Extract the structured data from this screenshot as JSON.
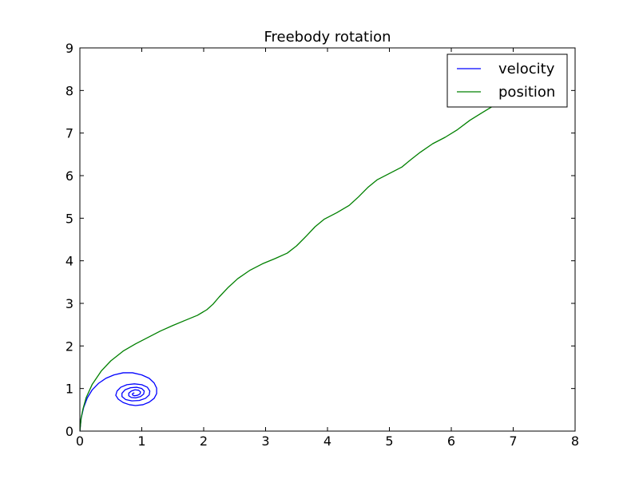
{
  "chart_data": {
    "type": "line",
    "title": "Freebody rotation",
    "xlabel": "",
    "ylabel": "",
    "xlim": [
      0,
      8
    ],
    "ylim": [
      0,
      9
    ],
    "xticks": [
      "0",
      "1",
      "2",
      "3",
      "4",
      "5",
      "6",
      "7",
      "8"
    ],
    "yticks": [
      "0",
      "1",
      "2",
      "3",
      "4",
      "5",
      "6",
      "7",
      "8",
      "9"
    ],
    "grid": false,
    "legend": "top-right",
    "series": [
      {
        "name": "velocity",
        "color": "#0000ff",
        "shape": "inward spiral",
        "x": [
          0.0,
          0.02,
          0.06,
          0.12,
          0.2,
          0.3,
          0.42,
          0.55,
          0.7,
          0.85,
          1.0,
          1.12,
          1.2,
          1.24,
          1.24,
          1.2,
          1.12,
          1.02,
          0.9,
          0.8,
          0.7,
          0.62,
          0.58,
          0.6,
          0.66,
          0.76,
          0.88,
          1.0,
          1.09,
          1.13,
          1.12,
          1.06,
          0.96,
          0.84,
          0.74,
          0.68,
          0.68,
          0.73,
          0.82,
          0.92,
          1.0,
          1.04,
          1.03,
          0.98,
          0.9,
          0.83,
          0.79,
          0.79,
          0.83,
          0.89,
          0.95,
          0.98,
          0.97,
          0.93,
          0.88,
          0.85,
          0.85,
          0.88
        ],
        "y": [
          0.0,
          0.3,
          0.55,
          0.78,
          0.97,
          1.12,
          1.24,
          1.32,
          1.37,
          1.37,
          1.32,
          1.24,
          1.13,
          1.01,
          0.88,
          0.77,
          0.68,
          0.62,
          0.6,
          0.62,
          0.67,
          0.75,
          0.84,
          0.94,
          1.03,
          1.09,
          1.11,
          1.09,
          1.03,
          0.94,
          0.85,
          0.77,
          0.72,
          0.71,
          0.74,
          0.81,
          0.89,
          0.97,
          1.02,
          1.03,
          1.0,
          0.94,
          0.87,
          0.81,
          0.78,
          0.79,
          0.83,
          0.89,
          0.94,
          0.97,
          0.96,
          0.92,
          0.87,
          0.84,
          0.83,
          0.85,
          0.88,
          0.9
        ]
      },
      {
        "name": "position",
        "color": "#008000",
        "x": [
          0.0,
          0.02,
          0.05,
          0.1,
          0.2,
          0.35,
          0.5,
          0.7,
          0.9,
          1.1,
          1.3,
          1.5,
          1.7,
          1.9,
          2.05,
          2.15,
          2.25,
          2.4,
          2.55,
          2.75,
          2.95,
          3.15,
          3.35,
          3.5,
          3.65,
          3.8,
          3.95,
          4.15,
          4.35,
          4.5,
          4.65,
          4.8,
          5.0,
          5.2,
          5.35,
          5.5,
          5.7,
          5.9,
          6.1,
          6.3,
          6.5,
          6.75,
          7.0,
          7.3,
          7.6,
          7.85
        ],
        "y": [
          0.0,
          0.3,
          0.52,
          0.78,
          1.1,
          1.42,
          1.65,
          1.88,
          2.05,
          2.2,
          2.35,
          2.48,
          2.6,
          2.72,
          2.85,
          2.98,
          3.15,
          3.38,
          3.58,
          3.78,
          3.93,
          4.05,
          4.18,
          4.35,
          4.57,
          4.8,
          4.98,
          5.13,
          5.3,
          5.5,
          5.72,
          5.9,
          6.05,
          6.2,
          6.38,
          6.55,
          6.75,
          6.9,
          7.08,
          7.3,
          7.48,
          7.7,
          7.9,
          8.15,
          8.5,
          8.85
        ]
      }
    ]
  }
}
